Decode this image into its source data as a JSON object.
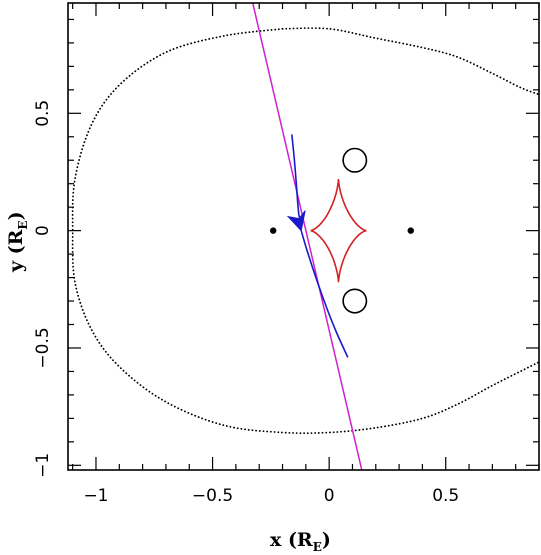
{
  "chart_data": {
    "type": "line",
    "title": "",
    "xlabel": "x (R",
    "xlabel_sub": "E",
    "xlabel_close": ")",
    "ylabel": "y (R",
    "ylabel_sub": "E",
    "ylabel_close": ")",
    "xlim": [
      -1.12,
      0.9
    ],
    "ylim": [
      -1.02,
      0.97
    ],
    "xticks": [
      -1,
      -0.5,
      0,
      0.5
    ],
    "xtick_labels": [
      "−1",
      "−0.5",
      "0",
      "0.5"
    ],
    "yticks": [
      -1,
      -0.5,
      0,
      0.5
    ],
    "ytick_labels": [
      "−1",
      "−0.5",
      "0",
      "0.5"
    ],
    "grid": false,
    "colors": {
      "critical_curve": "#000000",
      "caustic": "#d42020",
      "trajectory": "#d020d0",
      "image_track": "#1a1acc",
      "lens": "#000000"
    },
    "series": [
      {
        "style": "dotted",
        "color": "#000000",
        "points": [
          [
            -0.2,
            0.86
          ],
          [
            0.0,
            0.86
          ],
          [
            0.2,
            0.82
          ],
          [
            0.4,
            0.78
          ],
          [
            0.55,
            0.74
          ],
          [
            0.7,
            0.67
          ],
          [
            0.82,
            0.61
          ],
          [
            0.9,
            0.58
          ]
        ]
      },
      {
        "style": "dotted",
        "color": "#000000",
        "points": [
          [
            -0.2,
            0.86
          ],
          [
            -0.45,
            0.83
          ],
          [
            -0.7,
            0.76
          ],
          [
            -0.9,
            0.62
          ],
          [
            -1.02,
            0.45
          ],
          [
            -1.09,
            0.22
          ],
          [
            -1.1,
            0.0
          ],
          [
            -1.09,
            -0.22
          ],
          [
            -1.02,
            -0.42
          ],
          [
            -0.9,
            -0.58
          ],
          [
            -0.7,
            -0.73
          ],
          [
            -0.45,
            -0.83
          ],
          [
            -0.2,
            -0.86
          ],
          [
            0.0,
            -0.86
          ],
          [
            0.2,
            -0.84
          ],
          [
            0.4,
            -0.8
          ],
          [
            0.55,
            -0.74
          ],
          [
            0.7,
            -0.66
          ],
          [
            0.82,
            -0.6
          ],
          [
            0.9,
            -0.56
          ]
        ]
      },
      {
        "style": "solid",
        "color": "#000000",
        "shape": "oval",
        "center": [
          0.11,
          0.3
        ],
        "radius": [
          0.05,
          0.05
        ]
      },
      {
        "style": "solid",
        "color": "#000000",
        "shape": "oval",
        "center": [
          0.11,
          -0.3
        ],
        "radius": [
          0.05,
          0.05
        ]
      },
      {
        "style": "solid",
        "color": "#d42020",
        "shape": "astroid",
        "center": [
          0.0,
          0.0
        ],
        "x_cusps": [
          -0.08,
          0.16
        ],
        "y_cusps": [
          -0.22,
          0.22
        ]
      },
      {
        "style": "solid",
        "color": "#d020d0",
        "points": [
          [
            -0.33,
            0.98
          ],
          [
            0.14,
            -1.02
          ]
        ]
      },
      {
        "style": "solid",
        "color": "#1a1acc",
        "points": [
          [
            -0.16,
            0.41
          ],
          [
            -0.15,
            0.31
          ],
          [
            -0.14,
            0.19
          ],
          [
            -0.135,
            0.12
          ],
          [
            -0.13,
            0.07
          ],
          [
            -0.125,
            0.05
          ],
          [
            -0.12,
            0.04
          ]
        ]
      },
      {
        "style": "solid",
        "color": "#1a1acc",
        "points": [
          [
            -0.12,
            0.0
          ],
          [
            -0.09,
            -0.1
          ],
          [
            -0.05,
            -0.22
          ],
          [
            -0.01,
            -0.33
          ],
          [
            0.03,
            -0.43
          ],
          [
            0.08,
            -0.54
          ]
        ]
      },
      {
        "style": "marker",
        "color": "#1a1acc",
        "shape": "arrowhead",
        "points": [
          [
            -0.12,
            0.0
          ]
        ]
      }
    ],
    "lenses": [
      [
        -0.24,
        0.0
      ],
      [
        0.35,
        0.0
      ]
    ],
    "legend": "none"
  }
}
